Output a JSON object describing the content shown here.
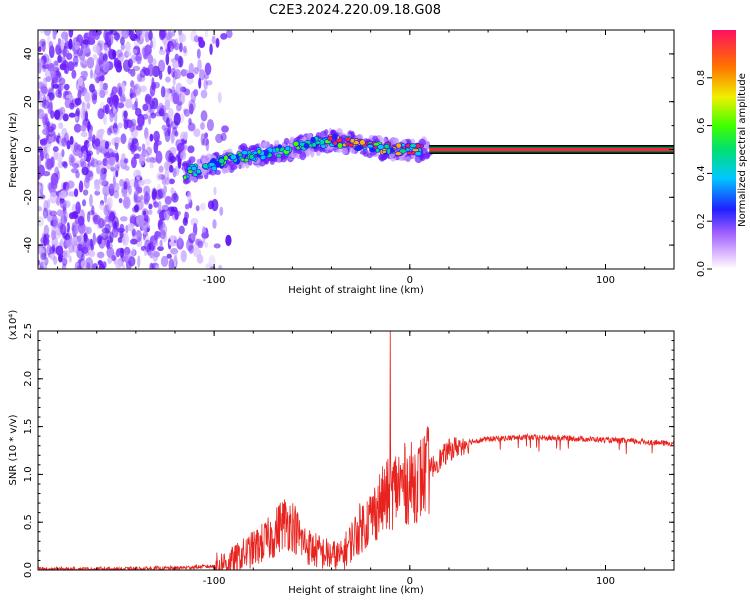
{
  "title": "C2E3.2024.220.09.18.G08",
  "chart_data": [
    {
      "type": "heatmap",
      "xlabel": "Height of straight line (km)",
      "ylabel": "Frequency (Hz)",
      "xlim": [
        -190,
        135
      ],
      "ylim": [
        -50,
        50
      ],
      "x_ticks": [
        -100,
        0,
        100
      ],
      "y_ticks": [
        -40,
        -20,
        0,
        20,
        40
      ],
      "grid": false,
      "colorbar": {
        "label": "Normalized spectral amplitude",
        "range": [
          0,
          1
        ],
        "ticks": [
          "0.0",
          "0.2",
          "0.4",
          "0.6",
          "0.8"
        ]
      },
      "colors": {
        "noise": "#6a1bff",
        "mid": "#00c8ff",
        "high": "#ff2040",
        "line_outline": "#008040"
      },
      "features": {
        "noise_region_x": [
          -190,
          -105
        ],
        "ridge_points": [
          [
            -115,
            -10
          ],
          [
            -100,
            -6
          ],
          [
            -85,
            -3
          ],
          [
            -70,
            -1
          ],
          [
            -55,
            1
          ],
          [
            -40,
            4
          ],
          [
            -25,
            2
          ],
          [
            -10,
            0
          ],
          [
            10,
            0
          ],
          [
            135,
            0
          ]
        ],
        "constant_tone_start_x": 10,
        "constant_tone_freq": 0
      }
    },
    {
      "type": "line",
      "xlabel": "Height of straight line (km)",
      "ylabel": "SNR (10 * v/v)",
      "y_multiplier": "(x10⁴)",
      "xlim": [
        -190,
        135
      ],
      "ylim": [
        0,
        2.5
      ],
      "x_ticks": [
        -100,
        0,
        100
      ],
      "y_ticks": [
        0.0,
        0.5,
        1.0,
        1.5,
        2.0,
        2.5
      ],
      "y_tick_labels": [
        "0.0",
        "0.5",
        "1.0",
        "1.5",
        "2.0",
        "2.5"
      ],
      "grid": false,
      "series": [
        {
          "color": "#e8231e",
          "x": [
            -190,
            -150,
            -120,
            -100,
            -90,
            -80,
            -70,
            -65,
            -60,
            -55,
            -50,
            -45,
            -40,
            -35,
            -30,
            -25,
            -20,
            -15,
            -10,
            -8,
            -5,
            0,
            5,
            10,
            15,
            20,
            25,
            30,
            40,
            50,
            60,
            70,
            80,
            90,
            100,
            110,
            120,
            135
          ],
          "values": [
            0.01,
            0.01,
            0.02,
            0.04,
            0.1,
            0.22,
            0.35,
            0.5,
            0.48,
            0.3,
            0.22,
            0.18,
            0.15,
            0.14,
            0.3,
            0.45,
            0.55,
            0.7,
            0.8,
            0.85,
            0.9,
            0.9,
            0.95,
            1.05,
            1.15,
            1.25,
            1.3,
            1.34,
            1.37,
            1.38,
            1.39,
            1.38,
            1.38,
            1.37,
            1.36,
            1.35,
            1.34,
            1.32
          ]
        }
      ],
      "annotations": [
        {
          "x": -10,
          "y": 2.5,
          "text": ""
        }
      ]
    }
  ]
}
